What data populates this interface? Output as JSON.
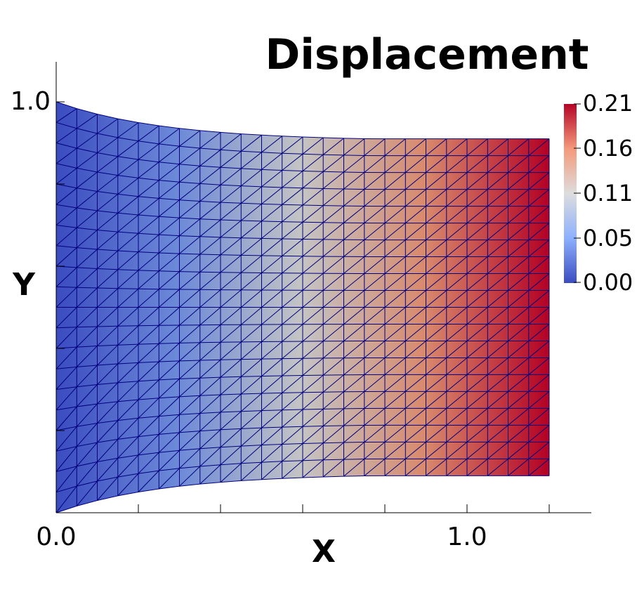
{
  "chart_data": {
    "type": "heatmap",
    "title": "Displacement",
    "xlabel": "X",
    "ylabel": "Y",
    "x_tick_labels": [
      "0.0",
      "1.0"
    ],
    "y_tick_labels": [
      "1.0"
    ],
    "x_ticks_major": [
      0.0,
      1.0
    ],
    "x_ticks_minor": [
      0.2,
      0.4,
      0.6,
      0.8,
      1.2
    ],
    "y_ticks_major": [
      1.0
    ],
    "y_ticks_minor": [
      0.2,
      0.4,
      0.6,
      0.8
    ],
    "xlim": [
      0.0,
      1.3
    ],
    "ylim": [
      0.0,
      1.1
    ],
    "grid": false,
    "colorbar": {
      "label": "",
      "range": [
        0.0,
        0.21
      ],
      "tick_labels": [
        "0.21",
        "0.16",
        "0.11",
        "0.05",
        "0.00"
      ],
      "tick_values": [
        0.21,
        0.16,
        0.11,
        0.05,
        0.0
      ],
      "colormap": "coolwarm",
      "colors": [
        "#3b4cc0",
        "#8db0fe",
        "#dddddd",
        "#f49a7b",
        "#b40426"
      ],
      "placement": "right"
    },
    "mesh": {
      "domain_x": [
        0.0,
        1.2
      ],
      "domain_y": [
        0.0,
        1.0
      ],
      "deformed_right_edge_y": [
        0.09,
        0.91
      ],
      "cells_x": 24,
      "cells_y": 20,
      "edge_color": "#00007f"
    },
    "field_samples": {
      "x": [
        0.0,
        0.3,
        0.6,
        0.9,
        1.2
      ],
      "displacement": [
        0.0,
        0.05,
        0.11,
        0.16,
        0.21
      ]
    }
  }
}
